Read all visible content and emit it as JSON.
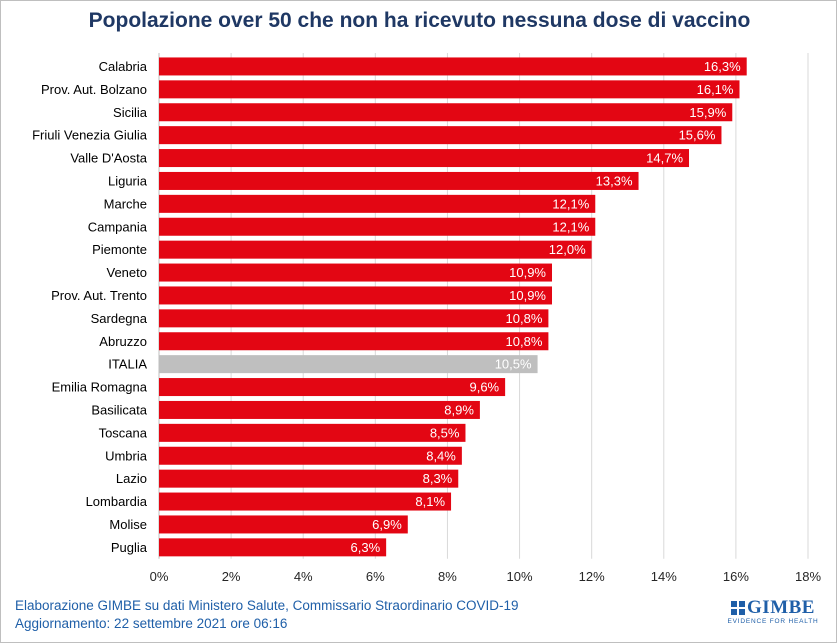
{
  "chart_data": {
    "type": "bar",
    "orientation": "horizontal",
    "title": "Popolazione over 50 che non ha ricevuto nessuna dose di vaccino",
    "categories": [
      "Calabria",
      "Prov. Aut. Bolzano",
      "Sicilia",
      "Friuli Venezia Giulia",
      "Valle D'Aosta",
      "Liguria",
      "Marche",
      "Campania",
      "Piemonte",
      "Veneto",
      "Prov. Aut. Trento",
      "Sardegna",
      "Abruzzo",
      "ITALIA",
      "Emilia Romagna",
      "Basilicata",
      "Toscana",
      "Umbria",
      "Lazio",
      "Lombardia",
      "Molise",
      "Puglia"
    ],
    "values": [
      16.3,
      16.1,
      15.9,
      15.6,
      14.7,
      13.3,
      12.1,
      12.1,
      12.0,
      10.9,
      10.9,
      10.8,
      10.8,
      10.5,
      9.6,
      8.9,
      8.5,
      8.4,
      8.3,
      8.1,
      6.9,
      6.3
    ],
    "value_labels": [
      "16,3%",
      "16,1%",
      "15,9%",
      "15,6%",
      "14,7%",
      "13,3%",
      "12,1%",
      "12,1%",
      "12,0%",
      "10,9%",
      "10,9%",
      "10,8%",
      "10,8%",
      "10,5%",
      "9,6%",
      "8,9%",
      "8,5%",
      "8,4%",
      "8,3%",
      "8,1%",
      "6,9%",
      "6,3%"
    ],
    "highlight_category": "ITALIA",
    "xlim": [
      0,
      18
    ],
    "xticks": [
      "0%",
      "2%",
      "4%",
      "6%",
      "8%",
      "10%",
      "12%",
      "14%",
      "16%",
      "18%"
    ],
    "grid": "vertical",
    "colors": {
      "bar": "#e30613",
      "highlight": "#bfbfbf",
      "title": "#1f3864",
      "label": "#ffffff"
    }
  },
  "footer": {
    "line1_prefix": "Elaborazione GIMBE",
    "line1_rest": "su dati Ministero Salute, Commissario Straordinario COVID-19",
    "line2": "Aggiornamento: 22 settembre 2021 ore 06:16"
  },
  "logo": {
    "name": "GIMBE",
    "tagline": "EVIDENCE FOR HEALTH"
  }
}
